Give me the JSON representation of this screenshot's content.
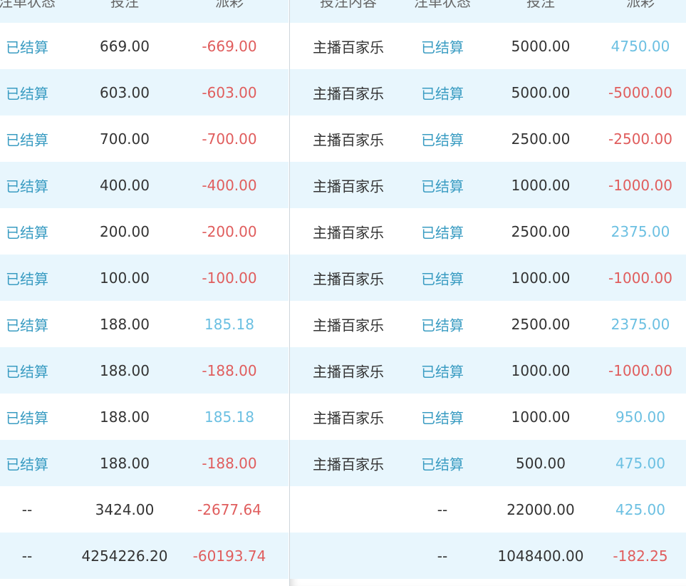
{
  "left": {
    "headers": [
      "注单状态",
      "投注",
      "派彩"
    ],
    "rows": [
      {
        "status": "已结算",
        "bet": "669.00",
        "payout": "-669.00",
        "sign": "neg"
      },
      {
        "status": "已结算",
        "bet": "603.00",
        "payout": "-603.00",
        "sign": "neg"
      },
      {
        "status": "已结算",
        "bet": "700.00",
        "payout": "-700.00",
        "sign": "neg"
      },
      {
        "status": "已结算",
        "bet": "400.00",
        "payout": "-400.00",
        "sign": "neg"
      },
      {
        "status": "已结算",
        "bet": "200.00",
        "payout": "-200.00",
        "sign": "neg"
      },
      {
        "status": "已结算",
        "bet": "100.00",
        "payout": "-100.00",
        "sign": "neg"
      },
      {
        "status": "已结算",
        "bet": "188.00",
        "payout": "185.18",
        "sign": "pos"
      },
      {
        "status": "已结算",
        "bet": "188.00",
        "payout": "-188.00",
        "sign": "neg"
      },
      {
        "status": "已结算",
        "bet": "188.00",
        "payout": "185.18",
        "sign": "pos"
      },
      {
        "status": "已结算",
        "bet": "188.00",
        "payout": "-188.00",
        "sign": "neg"
      },
      {
        "status": "--",
        "bet": "3424.00",
        "payout": "-2677.64",
        "sign": "neg",
        "summary": true
      },
      {
        "status": "--",
        "bet": "4254226.20",
        "payout": "-60193.74",
        "sign": "neg",
        "summary": true
      }
    ]
  },
  "right": {
    "headers": [
      "投注内容",
      "注单状态",
      "投注",
      "派彩"
    ],
    "rows": [
      {
        "content": "主播百家乐",
        "status": "已结算",
        "bet": "5000.00",
        "payout": "4750.00",
        "sign": "pos"
      },
      {
        "content": "主播百家乐",
        "status": "已结算",
        "bet": "5000.00",
        "payout": "-5000.00",
        "sign": "neg"
      },
      {
        "content": "主播百家乐",
        "status": "已结算",
        "bet": "2500.00",
        "payout": "-2500.00",
        "sign": "neg"
      },
      {
        "content": "主播百家乐",
        "status": "已结算",
        "bet": "1000.00",
        "payout": "-1000.00",
        "sign": "neg"
      },
      {
        "content": "主播百家乐",
        "status": "已结算",
        "bet": "2500.00",
        "payout": "2375.00",
        "sign": "pos"
      },
      {
        "content": "主播百家乐",
        "status": "已结算",
        "bet": "1000.00",
        "payout": "-1000.00",
        "sign": "neg"
      },
      {
        "content": "主播百家乐",
        "status": "已结算",
        "bet": "2500.00",
        "payout": "2375.00",
        "sign": "pos"
      },
      {
        "content": "主播百家乐",
        "status": "已结算",
        "bet": "1000.00",
        "payout": "-1000.00",
        "sign": "neg"
      },
      {
        "content": "主播百家乐",
        "status": "已结算",
        "bet": "1000.00",
        "payout": "950.00",
        "sign": "pos"
      },
      {
        "content": "主播百家乐",
        "status": "已结算",
        "bet": "500.00",
        "payout": "475.00",
        "sign": "pos"
      },
      {
        "content": "",
        "status": "--",
        "bet": "22000.00",
        "payout": "425.00",
        "sign": "pos",
        "summary": true
      },
      {
        "content": "",
        "status": "--",
        "bet": "1048400.00",
        "payout": "-182.25",
        "sign": "neg",
        "summary": true
      }
    ]
  },
  "colors": {
    "status": "#3a9cc2",
    "negative": "#e05d5d",
    "positive": "#6cc0e2",
    "row_alt": "#e8f6fd"
  }
}
